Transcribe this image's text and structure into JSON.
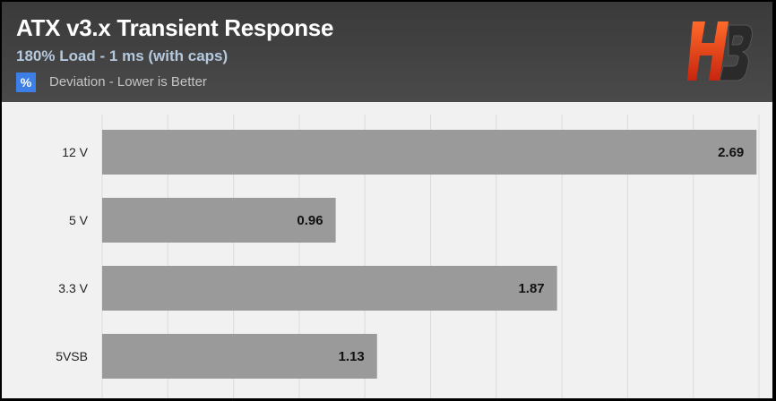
{
  "header": {
    "title": "ATX v3.x Transient Response",
    "subtitle": "180% Load - 1 ms (with caps)",
    "legend_symbol": "%",
    "legend_text": "Deviation - Lower is Better",
    "logo_icon": "hb-logo-icon"
  },
  "colors": {
    "header_bg": "#404040",
    "bar": "#9a9a9a",
    "plot_bg": "#f1f1f1",
    "legend_swatch": "#3d7fe6",
    "logo": "#e8401c"
  },
  "chart_data": {
    "type": "bar",
    "orientation": "horizontal",
    "categories": [
      "12 V",
      "5 V",
      "3.3 V",
      "5VSB"
    ],
    "values": [
      2.69,
      0.96,
      1.87,
      1.13
    ],
    "xlim": [
      0,
      2.7
    ],
    "grid": true,
    "legend": "top-left",
    "title": "ATX v3.x Transient Response",
    "subtitle": "180% Load - 1 ms (with caps)"
  }
}
